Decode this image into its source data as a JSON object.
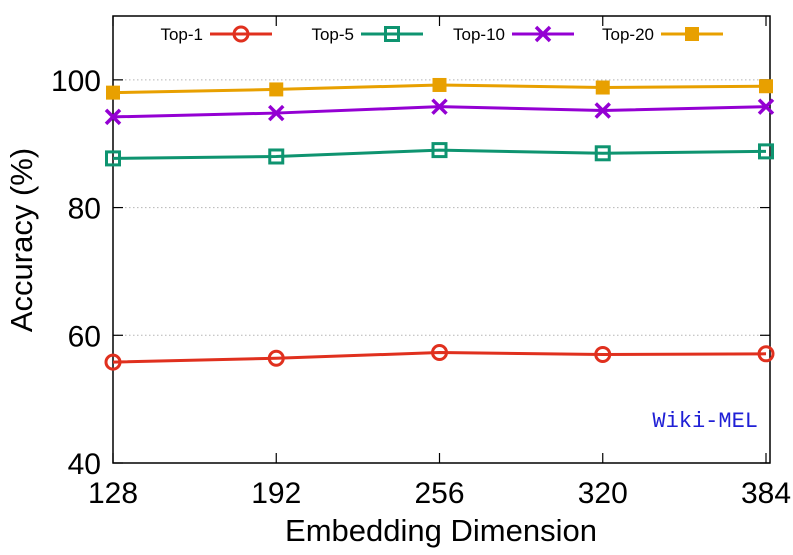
{
  "chart_data": {
    "type": "line",
    "xlabel": "Embedding Dimension",
    "ylabel": "Accuracy (%)",
    "x": [
      128,
      192,
      256,
      320,
      384
    ],
    "xticks": [
      "128",
      "192",
      "256",
      "320",
      "384"
    ],
    "ylim": [
      40,
      110
    ],
    "yticks": [
      40,
      60,
      80,
      100
    ],
    "grid": "horizontal-dotted",
    "legend_position": "top",
    "annotation": {
      "text": "Wiki-MEL",
      "color": "#1f1fd6",
      "position": "bottom-right"
    },
    "series": [
      {
        "name": "Top-1",
        "values": [
          55.8,
          56.4,
          57.3,
          57.0,
          57.1
        ],
        "color": "#e0301e",
        "marker": "circle"
      },
      {
        "name": "Top-5",
        "values": [
          87.7,
          88.0,
          89.0,
          88.5,
          88.8
        ],
        "color": "#0e9470",
        "marker": "square-open"
      },
      {
        "name": "Top-10",
        "values": [
          94.2,
          94.8,
          95.8,
          95.2,
          95.8
        ],
        "color": "#9400d3",
        "marker": "cross"
      },
      {
        "name": "Top-20",
        "values": [
          98.0,
          98.5,
          99.2,
          98.8,
          99.0
        ],
        "color": "#e8a000",
        "marker": "square-filled"
      }
    ]
  }
}
